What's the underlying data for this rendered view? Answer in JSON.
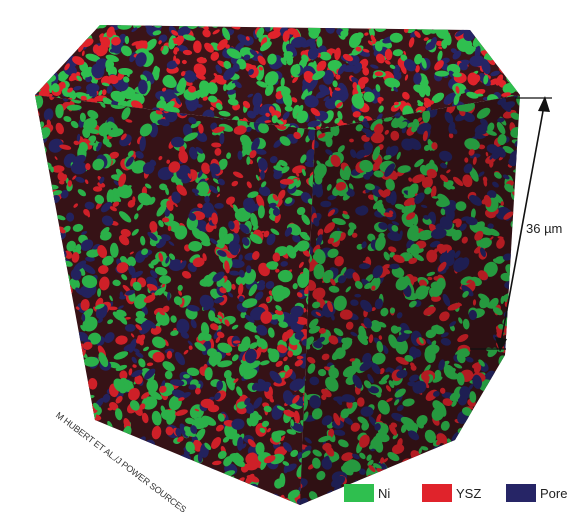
{
  "dimension": {
    "label": "36 µm"
  },
  "credit": "M HUBERT ET AL./J POWER SOURCES",
  "legend": [
    {
      "label": "Ni",
      "color": "#2fbf4f"
    },
    {
      "label": "YSZ",
      "color": "#e0232b"
    },
    {
      "label": "Pore",
      "color": "#262566"
    }
  ],
  "colors": {
    "background_face": "#3b1418",
    "arrow": "#111111"
  }
}
